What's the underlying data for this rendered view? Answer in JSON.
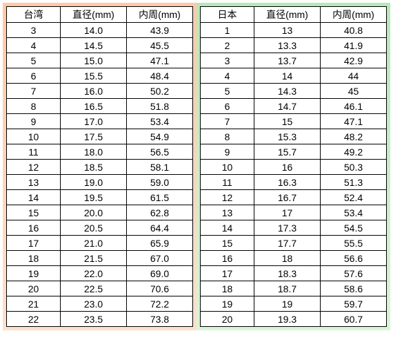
{
  "left_table": {
    "header_country": "台湾",
    "header_diameter": "直径(mm)",
    "header_circumference": "内周(mm)",
    "rows": [
      {
        "size": "3",
        "diameter": "14.0",
        "circumference": "43.9"
      },
      {
        "size": "4",
        "diameter": "14.5",
        "circumference": "45.5"
      },
      {
        "size": "5",
        "diameter": "15.0",
        "circumference": "47.1"
      },
      {
        "size": "6",
        "diameter": "15.5",
        "circumference": "48.4"
      },
      {
        "size": "7",
        "diameter": "16.0",
        "circumference": "50.2"
      },
      {
        "size": "8",
        "diameter": "16.5",
        "circumference": "51.8"
      },
      {
        "size": "9",
        "diameter": "17.0",
        "circumference": "53.4"
      },
      {
        "size": "10",
        "diameter": "17.5",
        "circumference": "54.9"
      },
      {
        "size": "11",
        "diameter": "18.0",
        "circumference": "56.5"
      },
      {
        "size": "12",
        "diameter": "18.5",
        "circumference": "58.1"
      },
      {
        "size": "13",
        "diameter": "19.0",
        "circumference": "59.0"
      },
      {
        "size": "14",
        "diameter": "19.5",
        "circumference": "61.5"
      },
      {
        "size": "15",
        "diameter": "20.0",
        "circumference": "62.8"
      },
      {
        "size": "16",
        "diameter": "20.5",
        "circumference": "64.4"
      },
      {
        "size": "17",
        "diameter": "21.0",
        "circumference": "65.9"
      },
      {
        "size": "18",
        "diameter": "21.5",
        "circumference": "67.0"
      },
      {
        "size": "19",
        "diameter": "22.0",
        "circumference": "69.0"
      },
      {
        "size": "20",
        "diameter": "22.5",
        "circumference": "70.6"
      },
      {
        "size": "21",
        "diameter": "23.0",
        "circumference": "72.2"
      },
      {
        "size": "22",
        "diameter": "23.5",
        "circumference": "73.8"
      }
    ]
  },
  "right_table": {
    "header_country": "日本",
    "header_diameter": "直径(mm)",
    "header_circumference": "内周(mm)",
    "rows": [
      {
        "size": "1",
        "diameter": "13",
        "circumference": "40.8"
      },
      {
        "size": "2",
        "diameter": "13.3",
        "circumference": "41.9"
      },
      {
        "size": "3",
        "diameter": "13.7",
        "circumference": "42.9"
      },
      {
        "size": "4",
        "diameter": "14",
        "circumference": "44"
      },
      {
        "size": "5",
        "diameter": "14.3",
        "circumference": "45"
      },
      {
        "size": "6",
        "diameter": "14.7",
        "circumference": "46.1"
      },
      {
        "size": "7",
        "diameter": "15",
        "circumference": "47.1"
      },
      {
        "size": "8",
        "diameter": "15.3",
        "circumference": "48.2"
      },
      {
        "size": "9",
        "diameter": "15.7",
        "circumference": "49.2"
      },
      {
        "size": "10",
        "diameter": "16",
        "circumference": "50.3"
      },
      {
        "size": "11",
        "diameter": "16.3",
        "circumference": "51.3"
      },
      {
        "size": "12",
        "diameter": "16.7",
        "circumference": "52.4"
      },
      {
        "size": "13",
        "diameter": "17",
        "circumference": "53.4"
      },
      {
        "size": "14",
        "diameter": "17.3",
        "circumference": "54.5"
      },
      {
        "size": "15",
        "diameter": "17.7",
        "circumference": "55.5"
      },
      {
        "size": "16",
        "diameter": "18",
        "circumference": "56.6"
      },
      {
        "size": "17",
        "diameter": "18.3",
        "circumference": "57.6"
      },
      {
        "size": "18",
        "diameter": "18.7",
        "circumference": "58.6"
      },
      {
        "size": "19",
        "diameter": "19",
        "circumference": "59.7"
      },
      {
        "size": "20",
        "diameter": "19.3",
        "circumference": "60.7"
      }
    ]
  },
  "styling": {
    "left_bg_top": "#ffc9a8",
    "left_bg_bottom": "#ffe0cc",
    "right_bg_top": "#b8e8b8",
    "right_bg_bottom": "#d8f5d8",
    "border_color": "#000000",
    "cell_bg": "#ffffff",
    "font_size": 14
  }
}
